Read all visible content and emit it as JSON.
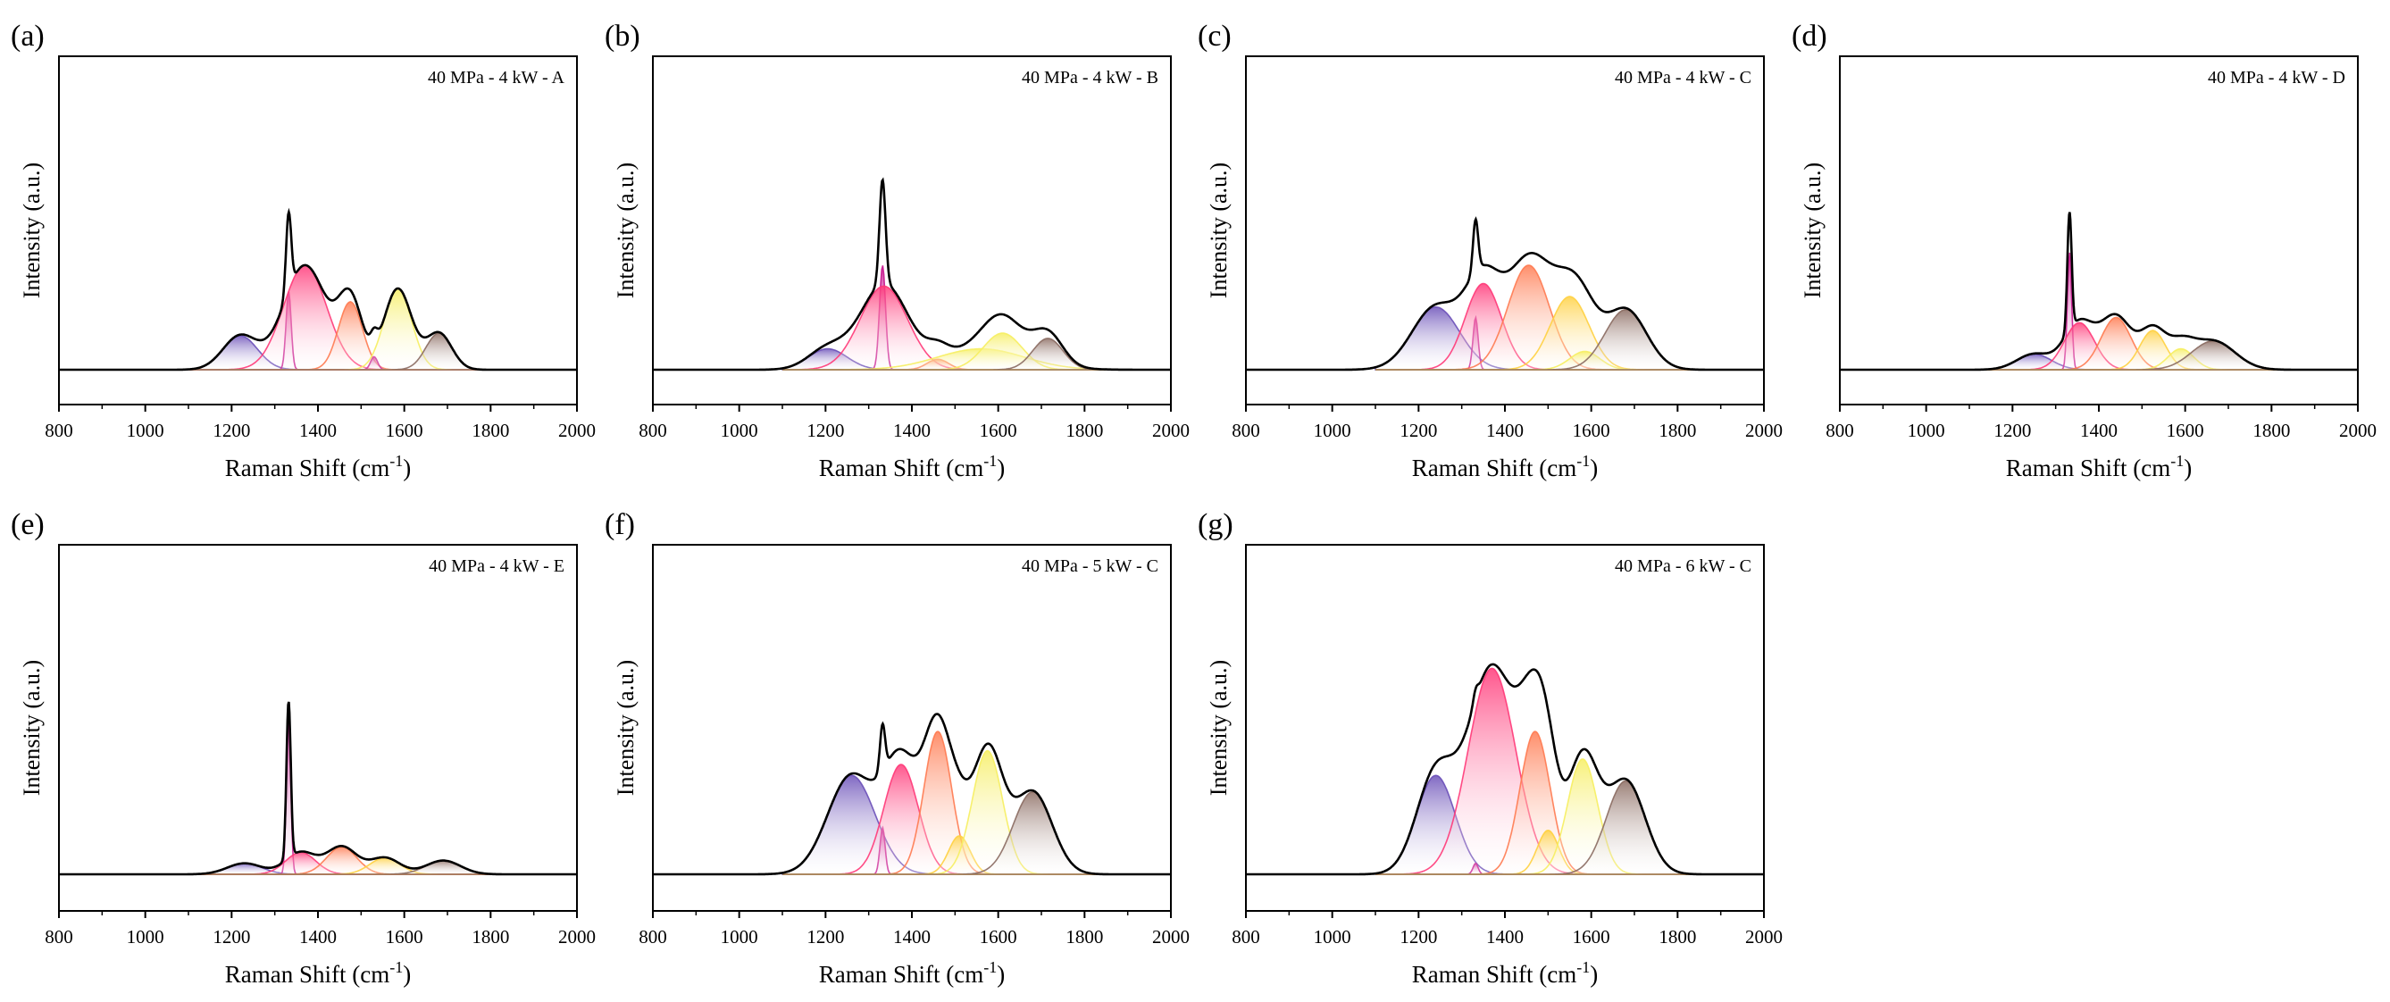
{
  "figure": {
    "panel_labels": [
      "(a)",
      "(b)",
      "(c)",
      "(d)",
      "(e)",
      "(f)",
      "(g)"
    ],
    "xlabel": "Raman Shift (cm",
    "xlabel_sup": "-1",
    "xlabel_close": ")",
    "ylabel": "Intensity (a.u.)"
  },
  "chart_data": [
    {
      "type": "area",
      "label": "(a)",
      "title": "40 MPa - 4 kW - A",
      "xlim": [
        800,
        2000
      ],
      "xticks": [
        800,
        1000,
        1200,
        1400,
        1600,
        1800,
        2000
      ],
      "ylim": [
        0,
        1.2
      ],
      "peaks": [
        {
          "center": 1220,
          "height": 0.13,
          "width": 40
        },
        {
          "center": 1332,
          "height": 0.3,
          "width": 6
        },
        {
          "center": 1370,
          "height": 0.4,
          "width": 50
        },
        {
          "center": 1475,
          "height": 0.26,
          "width": 28
        },
        {
          "center": 1530,
          "height": 0.05,
          "width": 8
        },
        {
          "center": 1585,
          "height": 0.31,
          "width": 32
        },
        {
          "center": 1680,
          "height": 0.14,
          "width": 30
        }
      ]
    },
    {
      "type": "area",
      "label": "(b)",
      "title": "40 MPa - 4 kW - B",
      "xlim": [
        800,
        2000
      ],
      "xticks": [
        800,
        1000,
        1200,
        1400,
        1600,
        1800,
        2000
      ],
      "ylim": [
        0,
        1.2
      ],
      "peaks": [
        {
          "center": 1205,
          "height": 0.08,
          "width": 45
        },
        {
          "center": 1332,
          "height": 0.4,
          "width": 7
        },
        {
          "center": 1335,
          "height": 0.32,
          "width": 55
        },
        {
          "center": 1460,
          "height": 0.04,
          "width": 25
        },
        {
          "center": 1560,
          "height": 0.08,
          "width": 100
        },
        {
          "center": 1610,
          "height": 0.14,
          "width": 45
        },
        {
          "center": 1715,
          "height": 0.12,
          "width": 35
        }
      ]
    },
    {
      "type": "area",
      "label": "(c)",
      "title": "40 MPa - 4 kW - C",
      "xlim": [
        800,
        2000
      ],
      "xticks": [
        800,
        1000,
        1200,
        1400,
        1600,
        1800,
        2000
      ],
      "ylim": [
        0,
        1.2
      ],
      "peaks": [
        {
          "center": 1240,
          "height": 0.24,
          "width": 55
        },
        {
          "center": 1332,
          "height": 0.2,
          "width": 6
        },
        {
          "center": 1350,
          "height": 0.33,
          "width": 42
        },
        {
          "center": 1455,
          "height": 0.4,
          "width": 48
        },
        {
          "center": 1550,
          "height": 0.28,
          "width": 45
        },
        {
          "center": 1585,
          "height": 0.07,
          "width": 35
        },
        {
          "center": 1680,
          "height": 0.23,
          "width": 48
        }
      ]
    },
    {
      "type": "area",
      "label": "(d)",
      "title": "40 MPa - 4 kW - D",
      "xlim": [
        800,
        2000
      ],
      "xticks": [
        800,
        1000,
        1200,
        1400,
        1600,
        1800,
        2000
      ],
      "ylim": [
        0,
        1.2
      ],
      "peaks": [
        {
          "center": 1250,
          "height": 0.06,
          "width": 40
        },
        {
          "center": 1332,
          "height": 0.45,
          "width": 5
        },
        {
          "center": 1355,
          "height": 0.18,
          "width": 35
        },
        {
          "center": 1440,
          "height": 0.2,
          "width": 35
        },
        {
          "center": 1525,
          "height": 0.15,
          "width": 30
        },
        {
          "center": 1590,
          "height": 0.08,
          "width": 30
        },
        {
          "center": 1665,
          "height": 0.11,
          "width": 50
        }
      ]
    },
    {
      "type": "area",
      "label": "(e)",
      "title": "40 MPa - 4 kW - E",
      "xlim": [
        800,
        2000
      ],
      "xticks": [
        800,
        1000,
        1200,
        1400,
        1600,
        1800,
        2000
      ],
      "ylim": [
        0,
        1.2
      ],
      "peaks": [
        {
          "center": 1230,
          "height": 0.04,
          "width": 40
        },
        {
          "center": 1332,
          "height": 0.57,
          "width": 5
        },
        {
          "center": 1360,
          "height": 0.08,
          "width": 35
        },
        {
          "center": 1455,
          "height": 0.1,
          "width": 35
        },
        {
          "center": 1555,
          "height": 0.06,
          "width": 35
        },
        {
          "center": 1690,
          "height": 0.05,
          "width": 40
        }
      ]
    },
    {
      "type": "area",
      "label": "(f)",
      "title": "40 MPa - 5 kW - C",
      "xlim": [
        800,
        2000
      ],
      "xticks": [
        800,
        1000,
        1200,
        1400,
        1600,
        1800,
        2000
      ],
      "ylim": [
        0,
        1.2
      ],
      "peaks": [
        {
          "center": 1260,
          "height": 0.36,
          "width": 55
        },
        {
          "center": 1332,
          "height": 0.17,
          "width": 6
        },
        {
          "center": 1375,
          "height": 0.4,
          "width": 40
        },
        {
          "center": 1460,
          "height": 0.52,
          "width": 32
        },
        {
          "center": 1510,
          "height": 0.14,
          "width": 25
        },
        {
          "center": 1575,
          "height": 0.45,
          "width": 35
        },
        {
          "center": 1680,
          "height": 0.3,
          "width": 45
        }
      ]
    },
    {
      "type": "area",
      "label": "(g)",
      "title": "40 MPa - 6 kW - C",
      "xlim": [
        800,
        2000
      ],
      "xticks": [
        800,
        1000,
        1200,
        1400,
        1600,
        1800,
        2000
      ],
      "ylim": [
        0,
        1.2
      ],
      "peaks": [
        {
          "center": 1240,
          "height": 0.36,
          "width": 45
        },
        {
          "center": 1332,
          "height": 0.04,
          "width": 6
        },
        {
          "center": 1370,
          "height": 0.75,
          "width": 55
        },
        {
          "center": 1470,
          "height": 0.52,
          "width": 35
        },
        {
          "center": 1500,
          "height": 0.16,
          "width": 25
        },
        {
          "center": 1580,
          "height": 0.42,
          "width": 35
        },
        {
          "center": 1680,
          "height": 0.34,
          "width": 45
        }
      ]
    }
  ],
  "colors": {
    "peak_palette": [
      "#6a4fb8",
      "#c81890",
      "#ff3878",
      "#ff7a50",
      "#ffd040",
      "#f6ee60",
      "#8a6a60"
    ],
    "envelope": "#000000"
  }
}
